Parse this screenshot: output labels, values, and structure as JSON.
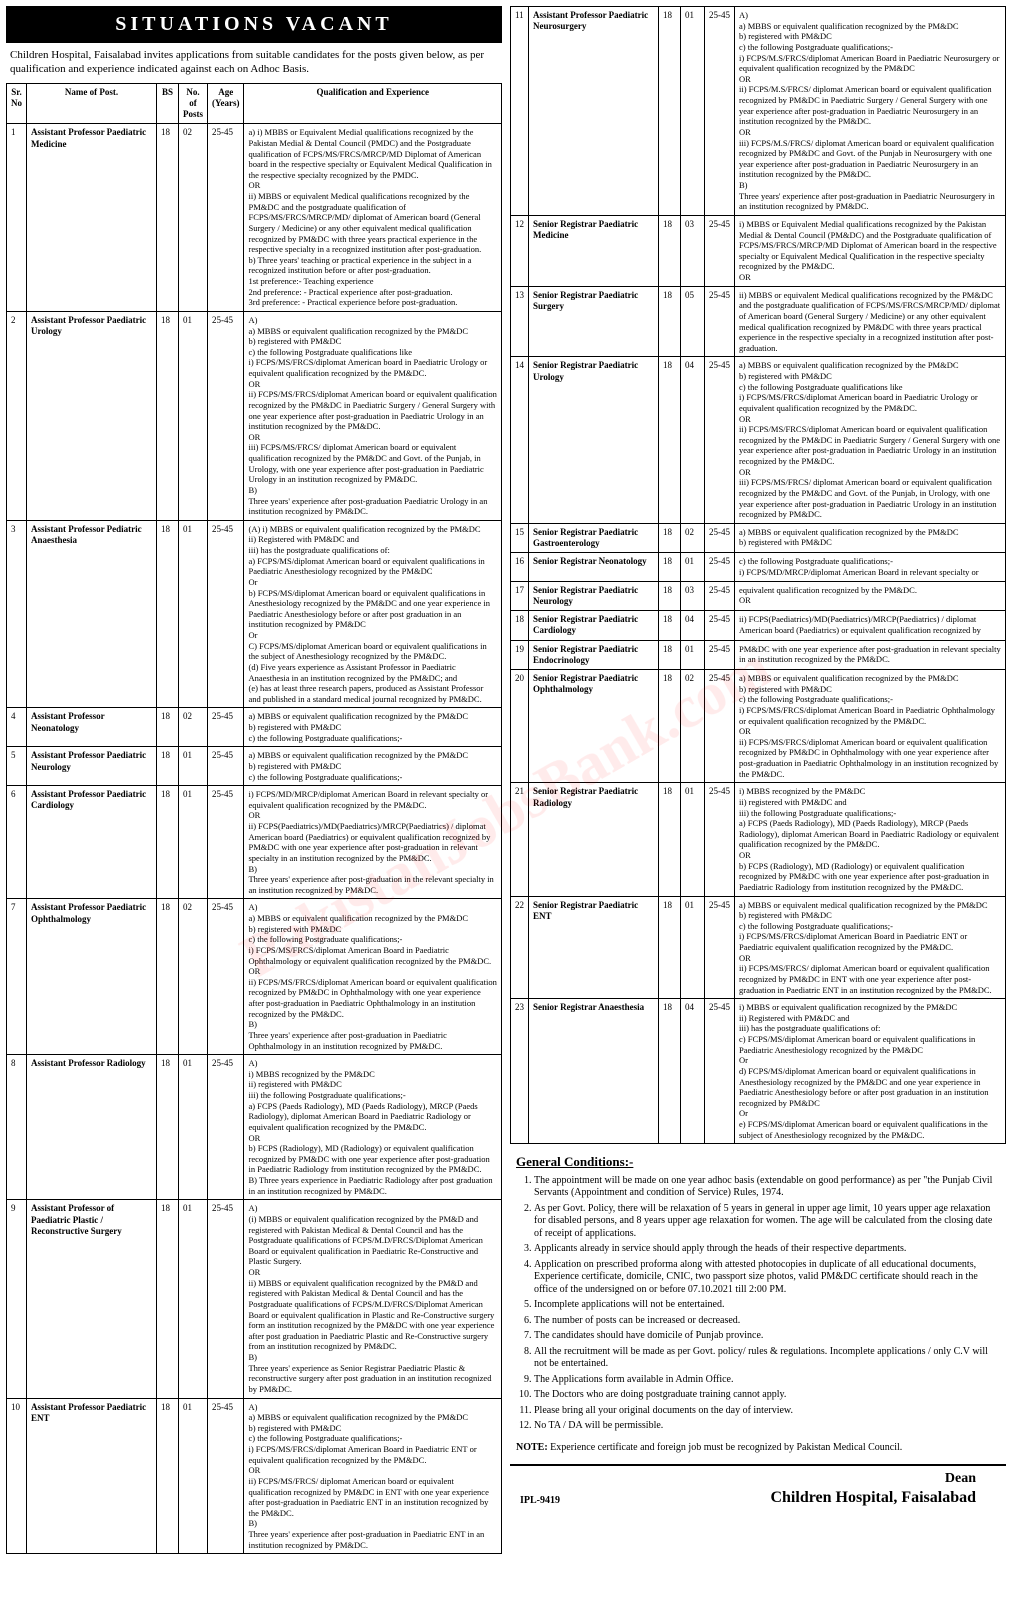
{
  "title": "SITUATIONS VACANT",
  "intro": "Children Hospital, Faisalabad invites applications from suitable candidates for the posts given below, as per qualification and experience indicated against each on Adhoc Basis.",
  "headers": {
    "sr": "Sr. No",
    "name": "Name of Post.",
    "bs": "BS",
    "posts": "No. of Posts",
    "age": "Age (Years)",
    "qual": "Qualification and Experience"
  },
  "watermark": "PakistanJobsBank.com",
  "rows_left": [
    {
      "no": "1",
      "name": "Assistant Professor Paediatric Medicine",
      "bs": "18",
      "posts": "02",
      "age": "25-45",
      "qual": "a) i) MBBS or Equivalent Medial qualifications recognized by the Pakistan Medial & Dental Council (PMDC) and the Postgraduate qualification of FCPS/MS/FRCS/MRCP/MD Diplomat of American board in the respective specialty or Equivalent Medical Qualification in the respective specialty recognized by the PMDC.\nOR\nii) MBBS or equivalent Medical qualifications recognized by the PM&DC and the postgraduate qualification of FCPS/MS/FRCS/MRCP/MD/ diplomat of American board (General Surgery / Medicine) or any other equivalent medical qualification recognized by PM&DC with three years practical experience in the respective specialty in a recognized institution after post-graduation.\nb) Three years' teaching or practical experience in the subject in a recognized institution before or after post-graduation.\n1st preference:- Teaching experience\n2nd preference: - Practical experience after post-graduation.\n3rd preference: - Practical experience before post-graduation."
    },
    {
      "no": "2",
      "name": "Assistant Professor Paediatric Urology",
      "bs": "18",
      "posts": "01",
      "age": "25-45",
      "qual": "A)\na) MBBS or equivalent qualification recognized by the PM&DC\nb) registered with PM&DC\nc) the following Postgraduate qualifications like\ni) FCPS/MS/FRCS/diplomat American board in Paediatric Urology or equivalent qualification recognized by the PM&DC.\nOR\nii) FCPS/MS/FRCS/diplomat American board or equivalent qualification recognized by the PM&DC in Paediatric Surgery / General Surgery with one year experience after post-graduation in Paediatric Urology in an institution recognized by the PM&DC.\nOR\niii) FCPS/MS/FRCS/ diplomat American board or equivalent qualification recognized by the PM&DC and Govt. of the Punjab, in Urology, with one year experience after post-graduation in Paediatric Urology in an institution recognized by PM&DC.\nB)\nThree years' experience after post-graduation Paediatric Urology in an institution recognized by PM&DC."
    },
    {
      "no": "3",
      "name": "Assistant Professor Pediatric Anaesthesia",
      "bs": "18",
      "posts": "01",
      "age": "25-45",
      "qual": "(A) i) MBBS or equivalent qualification recognized by the PM&DC\nii) Registered with PM&DC and\niii) has the postgraduate qualifications of:\na) FCPS/MS/diplomat American board or equivalent qualifications in Paediatric Anesthesiology recognized by the PM&DC\nOr\nb) FCPS/MS/diplomat American board or equivalent qualifications in Anesthesiology recognized by the PM&DC and one year experience in Paediatric Anesthesiology before or after post graduation in an institution recognized by PM&DC\nOr\nC) FCPS/MS/diplomat American board or equivalent qualifications in the subject of Anesthesiology recognized by the PM&DC.\n(d) Five years experience as Assistant Professor in Paediatric Anaesthesia in an institution recognized by the PM&DC; and\n(e) has at least three research papers, produced as Assistant Professor and published in a standard medical journal recognized by PM&DC."
    },
    {
      "no": "4",
      "name": "Assistant Professor Neonatology",
      "bs": "18",
      "posts": "02",
      "age": "25-45",
      "qual": "a) MBBS or equivalent qualification recognized by the PM&DC\nb) registered with PM&DC\nc) the following Postgraduate qualifications;-"
    },
    {
      "no": "5",
      "name": "Assistant Professor Paediatric Neurology",
      "bs": "18",
      "posts": "01",
      "age": "25-45",
      "qual": "a) MBBS or equivalent qualification recognized by the PM&DC\nb) registered with PM&DC\nc) the following Postgraduate qualifications;-"
    },
    {
      "no": "6",
      "name": "Assistant Professor Paediatric Cardiology",
      "bs": "18",
      "posts": "01",
      "age": "25-45",
      "qual": "i) FCPS/MD/MRCP/diplomat American Board in relevant specialty or equivalent qualification recognized by the PM&DC.\nOR\nii) FCPS(Paediatrics)/MD(Paediatrics)/MRCP(Paediatrics) / diplomat American board (Paediatrics) or equivalent qualification recognized by PM&DC with one year experience after post-graduation in relevant specialty in an institution recognized by the PM&DC.\nB)\nThree years' experience after post-graduation in the relevant specialty in an institution recognized by PM&DC."
    },
    {
      "no": "7",
      "name": "Assistant Professor Paediatric Ophthalmology",
      "bs": "18",
      "posts": "02",
      "age": "25-45",
      "qual": "A)\na) MBBS or equivalent qualification recognized by the PM&DC\nb) registered with PM&DC\nc) the following Postgraduate qualifications;-\ni) FCPS/MS/FRCS/diplomat American Board in Paediatric Ophthalmology or equivalent qualification recognized by the PM&DC.\nOR\nii) FCPS/MS/FRCS/diplomat American board or equivalent qualification recognized by PM&DC in Ophthalmology with one year experience after post-graduation in Paediatric Ophthalmology in an institution recognized by the PM&DC.\nB)\nThree years' experience after post-graduation in Paediatric Ophthalmology in an institution recognized by PM&DC."
    },
    {
      "no": "8",
      "name": "Assistant Professor Radiology",
      "bs": "18",
      "posts": "01",
      "age": "25-45",
      "qual": "A)\ni) MBBS recognized by the PM&DC\nii) registered with PM&DC\niii) the following Postgraduate qualifications;-\na) FCPS (Paeds Radiology), MD (Paeds Radiology), MRCP (Paeds Radiology), diplomat American Board in Paediatric Radiology or equivalent qualification recognized by the PM&DC.\nOR\nb) FCPS (Radiology), MD (Radiology) or equivalent qualification recognized by PM&DC with one year experience after post-graduation in Paediatric Radiology from institution recognized by the PM&DC.\nB) Three years experience in Paediatric Radiology after post graduation in an institution recognized by PM&DC."
    },
    {
      "no": "9",
      "name": "Assistant Professor of Paediatric Plastic / Reconstructive Surgery",
      "bs": "18",
      "posts": "01",
      "age": "25-45",
      "qual": "A)\n(i) MBBS or equivalent qualification recognized by the PM&D and registered with Pakistan Medical & Dental Council and has the Postgraduate qualifications of FCPS/M.D/FRCS/Diplomat American Board or equivalent qualification in Paediatric Re-Constructive and Plastic Surgery.\nOR\nii) MBBS or equivalent qualification recognized by the PM&D and registered with Pakistan Medical & Dental Council and has the Postgraduate qualifications of FCPS/M.D/FRCS/Diplomat American Board or equivalent qualification in Plastic and Re-Constructive surgery form an institution recognized by the PM&DC with one year experience after post graduation in Paediatric Plastic and Re-Constructive surgery from an institution recognized by PM&DC.\nB)\nThree years' experience as Senior Registrar Paediatric Plastic & reconstructive surgery after post graduation in an institution recognized by PM&DC."
    },
    {
      "no": "10",
      "name": "Assistant Professor Paediatric ENT",
      "bs": "18",
      "posts": "01",
      "age": "25-45",
      "qual": "A)\na) MBBS or equivalent qualification recognized by the PM&DC\nb) registered with PM&DC\nc) the following Postgraduate qualifications;-\ni) FCPS/MS/FRCS/diplomat American Board in Paediatric ENT or equivalent qualification recognized by the PM&DC.\nOR\nii) FCPS/MS/FRCS/ diplomat American board or equivalent qualification recognized by PM&DC in ENT with one year experience after post-graduation in Paediatric ENT in an institution recognized by the PM&DC.\nB)\nThree years' experience after post-graduation in Paediatric ENT in an institution recognized by PM&DC."
    }
  ],
  "rows_right": [
    {
      "no": "11",
      "name": "Assistant Professor Paediatric Neurosurgery",
      "bs": "18",
      "posts": "01",
      "age": "25-45",
      "qual": "A)\na) MBBS or equivalent qualification recognized by the PM&DC\nb) registered with PM&DC\nc) the following Postgraduate qualifications;-\ni) FCPS/M.S/FRCS/diplomat American Board in Paediatric Neurosurgery or equivalent qualification recognized by the PM&DC\nOR\nii) FCPS/M.S/FRCS/ diplomat American board or equivalent qualification recognized by PM&DC in Paediatric Surgery / General Surgery with one year experience after post-graduation in Paediatric Neurosurgery in an institution recognized by the PM&DC.\nOR\niii) FCPS/M.S/FRCS/ diplomat American board or equivalent qualification recognized by PM&DC and Govt. of the Punjab in Neurosurgery with one year experience after post-graduation in Paediatric Neurosurgery in an institution recognized by the PM&DC.\nB)\nThree years' experience after post-graduation in Paediatric Neurosurgery in an institution recognized by PM&DC."
    },
    {
      "no": "12",
      "name": "Senior Registrar Paediatric Medicine",
      "bs": "18",
      "posts": "03",
      "age": "25-45",
      "qual": "i) MBBS or Equivalent Medial qualifications recognized by the Pakistan Medial & Dental Council (PM&DC) and the Postgraduate qualification of FCPS/MS/FRCS/MRCP/MD Diplomat of American board in the respective specialty or Equivalent Medical Qualification in the respective specialty recognized by the PM&DC.\nOR"
    },
    {
      "no": "13",
      "name": "Senior Registrar Paediatric Surgery",
      "bs": "18",
      "posts": "05",
      "age": "25-45",
      "qual": "ii) MBBS or equivalent Medical qualifications recognized by the PM&DC and the postgraduate qualification of FCPS/MS/FRCS/MRCP/MD/ diplomat of American board (General Surgery / Medicine) or any other equivalent medical qualification recognized by PM&DC with three years practical experience in the respective specialty in a recognized institution after post-graduation."
    },
    {
      "no": "14",
      "name": "Senior Registrar Paediatric Urology",
      "bs": "18",
      "posts": "04",
      "age": "25-45",
      "qual": "a) MBBS or equivalent qualification recognized by the PM&DC\nb) registered with PM&DC\nc) the following Postgraduate qualifications like\ni) FCPS/MS/FRCS/diplomat American board in Paediatric Urology or equivalent qualification recognized by the PM&DC.\nOR\nii) FCPS/MS/FRCS/diplomat American board or equivalent qualification recognized by the PM&DC in Paediatric Surgery / General Surgery with one year experience after post-graduation in Paediatric Urology in an institution recognized by the PM&DC.\nOR\niii) FCPS/MS/FRCS/ diplomat American board or equivalent qualification recognized by the PM&DC and Govt. of the Punjab, in Urology, with one year experience after post-graduation in Paediatric Urology in an institution recognized by PM&DC."
    },
    {
      "no": "15",
      "name": "Senior Registrar Paediatric Gastroenterology",
      "bs": "18",
      "posts": "02",
      "age": "25-45",
      "qual": "a) MBBS or equivalent qualification recognized by the PM&DC\nb) registered with PM&DC"
    },
    {
      "no": "16",
      "name": "Senior Registrar Neonatology",
      "bs": "18",
      "posts": "01",
      "age": "25-45",
      "qual": "c) the following Postgraduate qualifications;-\ni) FCPS/MD/MRCP/diplomat American Board in relevant specialty or"
    },
    {
      "no": "17",
      "name": "Senior Registrar Paediatric Neurology",
      "bs": "18",
      "posts": "03",
      "age": "25-45",
      "qual": "equivalent qualification recognized by the PM&DC.\nOR"
    },
    {
      "no": "18",
      "name": "Senior Registrar Paediatric Cardiology",
      "bs": "18",
      "posts": "04",
      "age": "25-45",
      "qual": "ii) FCPS(Paediatrics)/MD(Paediatrics)/MRCP(Paediatrics) / diplomat American board (Paediatrics) or equivalent qualification recognized by"
    },
    {
      "no": "19",
      "name": "Senior Registrar Paediatric Endocrinology",
      "bs": "18",
      "posts": "01",
      "age": "25-45",
      "qual": "PM&DC with one year experience after post-graduation in relevant specialty in an institution recognized by the PM&DC."
    },
    {
      "no": "20",
      "name": "Senior Registrar Paediatric Ophthalmology",
      "bs": "18",
      "posts": "02",
      "age": "25-45",
      "qual": "a) MBBS or equivalent qualification recognized by the PM&DC\nb) registered with PM&DC\nc) the following Postgraduate qualifications;-\ni) FCPS/MS/FRCS/diplomat American Board in Paediatric Ophthalmology or equivalent qualification recognized by the PM&DC.\nOR\nii) FCPS/MS/FRCS/diplomat American board or equivalent qualification recognized by PM&DC in Ophthalmology with one year experience after post-graduation in Paediatric Ophthalmology in an institution recognized by the PM&DC."
    },
    {
      "no": "21",
      "name": "Senior Registrar Paediatric Radiology",
      "bs": "18",
      "posts": "01",
      "age": "25-45",
      "qual": "i) MBBS recognized by the PM&DC\nii) registered with PM&DC and\niii) the following Postgraduate qualifications;-\na) FCPS (Paeds Radiology), MD (Paeds Radiology), MRCP (Paeds Radiology), diplomat American Board in Paediatric Radiology or equivalent qualification recognized by the PM&DC.\nOR\nb) FCPS (Radiology), MD (Radiology) or equivalent qualification recognized by PM&DC with one year experience after post-graduation in Paediatric Radiology from institution recognized by the PM&DC."
    },
    {
      "no": "22",
      "name": "Senior Registrar Paediatric ENT",
      "bs": "18",
      "posts": "01",
      "age": "25-45",
      "qual": "a) MBBS or equivalent medical qualification recognized by the PM&DC\nb) registered with PM&DC\nc) the following Postgraduate qualifications;-\ni) FCPS/MS/FRCS/diplomat American Board in Paediatric ENT or Paediatric equivalent qualification recognized by the PM&DC.\nOR\nii) FCPS/MS/FRCS/ diplomat American board or equivalent qualification recognized by PM&DC in ENT with one year experience after post-graduation in Paediatric ENT in an institution recognized by the PM&DC."
    },
    {
      "no": "23",
      "name": "Senior Registrar Anaesthesia",
      "bs": "18",
      "posts": "04",
      "age": "25-45",
      "qual": "i) MBBS or equivalent qualification recognized by the PM&DC\nii) Registered with PM&DC and\niii) has the postgraduate qualifications of:\nc) FCPS/MS/diplomat American board or equivalent qualifications in Paediatric Anesthesiology recognized by the PM&DC\nOr\nd) FCPS/MS/diplomat American board or equivalent qualifications in Anesthesiology recognized by the PM&DC and one year experience in Paediatric Anesthesiology before or after post graduation in an institution recognized by PM&DC\nOr\ne) FCPS/MS/diplomat American board or equivalent qualifications in the subject of Anesthesiology recognized by the PM&DC."
    }
  ],
  "general_title": "General Conditions:-",
  "general": [
    "The appointment will be made on one year adhoc basis (extendable on good performance) as per \"the Punjab Civil Servants (Appointment and condition of Service) Rules, 1974.",
    "As per Govt. Policy, there will be relaxation of 5 years in general in upper age limit, 10 years upper age relaxation for disabled persons, and 8 years upper age relaxation for women. The age will be calculated from the closing date of receipt of applications.",
    "Applicants already in service should apply through the heads of their respective departments.",
    "Application on prescribed proforma along with attested photocopies in duplicate of all educational documents, Experience certificate, domicile, CNIC, two passport size photos, valid PM&DC certificate should reach in the office of the undersigned on or before 07.10.2021 till 2:00 PM.",
    "Incomplete applications will not be entertained.",
    "The number of posts can be increased or decreased.",
    "The candidates should have domicile of Punjab province.",
    "All the recruitment will be made as per Govt. policy/ rules & regulations. Incomplete applications / only C.V will not be entertained.",
    "The Applications form available in Admin Office.",
    "The Doctors who are doing postgraduate training cannot apply.",
    "Please bring all your original documents on the day of interview.",
    "No TA / DA will be permissible."
  ],
  "note_label": "NOTE:",
  "note": "Experience certificate and foreign job must be recognized by Pakistan Medical Council.",
  "footer": {
    "dean": "Dean",
    "hospital": "Children Hospital, Faisalabad",
    "ipl": "IPL-9419"
  }
}
